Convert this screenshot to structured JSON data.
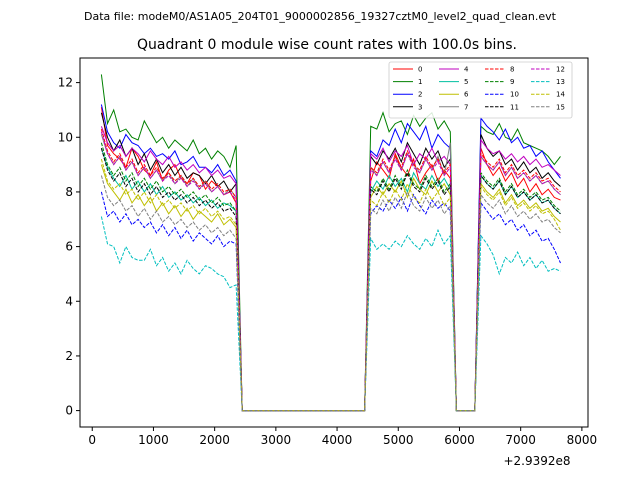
{
  "chart_data": {
    "type": "line",
    "supertitle": "Data file: modeM0/AS1A05_204T01_9000002856_19327cztM0_level2_quad_clean.evt",
    "title": "Quadrant 0 module wise count rates with 100.0s bins.",
    "xlabel": "",
    "ylabel": "",
    "x_offset_label": "+2.9392e8",
    "xlim": [
      -200,
      8100
    ],
    "ylim": [
      -0.6,
      12.9
    ],
    "xticks": [
      0,
      1000,
      2000,
      3000,
      4000,
      5000,
      6000,
      7000,
      8000
    ],
    "xtick_labels": [
      "0",
      "1000",
      "2000",
      "3000",
      "4000",
      "5000",
      "6000",
      "7000",
      "8000"
    ],
    "yticks": [
      0,
      2,
      4,
      6,
      8,
      10,
      12
    ],
    "ytick_labels": [
      "0",
      "2",
      "4",
      "6",
      "8",
      "10",
      "12"
    ],
    "grid": false,
    "legend_position": "upper-right",
    "x_segments": [
      {
        "start": 150,
        "end": 2350
      },
      {
        "start": 4550,
        "end": 5850
      },
      {
        "start": 6350,
        "end": 7650
      }
    ],
    "series": [
      {
        "name": "0",
        "color": "#ff0000",
        "dash": "solid",
        "segments": [
          [
            11.1,
            9.7,
            9.4,
            9.2,
            8.9,
            9.6,
            9.3,
            8.8,
            8.6,
            9.1,
            8.4,
            8.8,
            9.0,
            8.5,
            8.3,
            8.7,
            8.6,
            8.1,
            8.4,
            8.2,
            7.9,
            8.0,
            7.6
          ],
          [
            8.4,
            9.1,
            8.8,
            8.5,
            9.4,
            8.9,
            8.6,
            9.2,
            8.3,
            8.7,
            9.0,
            8.4,
            8.8,
            8.5
          ],
          [
            9.6,
            9.0,
            8.6,
            8.9,
            8.4,
            8.7,
            8.2,
            8.5,
            8.0,
            8.3,
            7.9,
            8.1,
            7.8,
            7.7
          ]
        ]
      },
      {
        "name": "1",
        "color": "#008000",
        "dash": "solid",
        "segments": [
          [
            12.3,
            10.5,
            11.0,
            10.2,
            10.3,
            10.0,
            9.9,
            10.6,
            10.2,
            9.8,
            10.0,
            9.6,
            9.9,
            9.7,
            9.5,
            9.9,
            9.4,
            9.6,
            9.2,
            9.5,
            9.3,
            8.9,
            9.7
          ],
          [
            10.4,
            10.3,
            10.9,
            10.2,
            10.5,
            10.6,
            10.1,
            10.8,
            10.4,
            10.7,
            10.9,
            10.3,
            10.6,
            10.2
          ],
          [
            10.4,
            10.2,
            10.1,
            10.5,
            10.0,
            9.9,
            10.3,
            9.8,
            9.7,
            9.6,
            9.5,
            9.3,
            9.0,
            9.3
          ]
        ]
      },
      {
        "name": "2",
        "color": "#0000ff",
        "dash": "solid",
        "segments": [
          [
            11.2,
            10.2,
            9.8,
            9.6,
            10.1,
            9.8,
            9.7,
            9.4,
            9.6,
            9.3,
            9.4,
            9.2,
            9.5,
            9.0,
            9.1,
            9.3,
            8.9,
            8.9,
            8.7,
            9.0,
            8.6,
            8.8,
            8.4
          ],
          [
            9.5,
            9.3,
            9.9,
            9.7,
            10.3,
            9.8,
            10.5,
            10.2,
            9.9,
            10.4,
            9.6,
            10.1,
            9.8,
            9.6
          ],
          [
            10.7,
            10.4,
            10.2,
            9.9,
            10.3,
            9.8,
            10.0,
            9.6,
            9.7,
            9.3,
            9.5,
            9.1,
            8.8,
            8.5
          ]
        ]
      },
      {
        "name": "3",
        "color": "#000000",
        "dash": "solid",
        "segments": [
          [
            10.9,
            10.0,
            9.5,
            9.9,
            9.3,
            9.6,
            9.0,
            9.4,
            8.8,
            9.2,
            8.7,
            9.0,
            8.6,
            8.9,
            8.5,
            8.7,
            8.6,
            8.3,
            8.6,
            8.2,
            8.4,
            8.0,
            8.3
          ],
          [
            9.3,
            9.0,
            9.5,
            9.2,
            9.6,
            9.1,
            9.8,
            9.4,
            9.0,
            9.6,
            9.2,
            9.5,
            8.9,
            9.2
          ],
          [
            10.1,
            9.6,
            9.3,
            9.5,
            9.0,
            9.2,
            8.8,
            9.1,
            8.7,
            8.9,
            8.5,
            8.7,
            8.4,
            8.2
          ]
        ]
      },
      {
        "name": "4",
        "color": "#bf00bf",
        "dash": "solid",
        "segments": [
          [
            10.4,
            9.8,
            9.5,
            9.7,
            9.3,
            9.6,
            9.4,
            9.1,
            9.5,
            9.2,
            9.0,
            9.3,
            8.9,
            9.1,
            8.8,
            9.0,
            8.7,
            8.9,
            8.6,
            8.8,
            8.5,
            8.6,
            8.3
          ],
          [
            9.4,
            9.2,
            9.6,
            9.1,
            9.5,
            9.3,
            9.7,
            9.0,
            9.4,
            9.2,
            9.6,
            9.1,
            9.3,
            9.0
          ],
          [
            9.9,
            9.6,
            9.4,
            9.5,
            9.2,
            9.4,
            9.1,
            9.3,
            9.0,
            9.2,
            8.9,
            9.0,
            8.8,
            8.6
          ]
        ]
      },
      {
        "name": "5",
        "color": "#00bfa0",
        "dash": "solid",
        "segments": [
          [
            9.6,
            8.9,
            8.5,
            8.2,
            8.6,
            8.1,
            8.4,
            8.0,
            8.3,
            7.9,
            8.2,
            7.8,
            8.0,
            7.7,
            7.9,
            7.6,
            7.8,
            7.5,
            7.7,
            7.4,
            7.6,
            7.5,
            7.3
          ],
          [
            8.0,
            8.4,
            8.1,
            8.6,
            8.2,
            8.5,
            8.0,
            8.7,
            8.3,
            8.1,
            8.6,
            8.2,
            8.5,
            8.1
          ],
          [
            8.6,
            8.3,
            8.1,
            8.4,
            7.9,
            8.2,
            7.8,
            8.0,
            7.7,
            7.9,
            7.6,
            7.7,
            7.4,
            7.2
          ]
        ]
      },
      {
        "name": "6",
        "color": "#bfbf00",
        "dash": "solid",
        "segments": [
          [
            9.0,
            8.3,
            8.0,
            7.7,
            8.1,
            7.6,
            7.9,
            7.5,
            7.8,
            7.3,
            7.6,
            7.2,
            7.5,
            7.1,
            7.4,
            7.0,
            7.3,
            7.1,
            6.9,
            7.2,
            6.8,
            7.0,
            6.7
          ],
          [
            7.8,
            8.2,
            7.9,
            8.3,
            8.0,
            8.4,
            7.8,
            8.5,
            8.1,
            7.9,
            8.4,
            8.0,
            8.3,
            7.9
          ],
          [
            8.3,
            8.0,
            7.8,
            8.1,
            7.6,
            7.9,
            7.5,
            7.7,
            7.4,
            7.6,
            7.3,
            7.4,
            7.1,
            6.9
          ]
        ]
      },
      {
        "name": "7",
        "color": "#808080",
        "dash": "solid",
        "segments": [
          [
            10.1,
            9.4,
            9.0,
            9.3,
            8.8,
            9.1,
            8.6,
            8.9,
            8.5,
            8.8,
            8.4,
            8.7,
            8.3,
            8.6,
            8.2,
            8.5,
            8.1,
            8.4,
            8.0,
            8.2,
            7.9,
            8.1,
            7.8
          ],
          [
            8.9,
            8.6,
            9.1,
            8.7,
            9.3,
            8.8,
            9.4,
            9.0,
            8.7,
            9.2,
            8.8,
            9.3,
            8.6,
            9.8
          ],
          [
            9.3,
            9.0,
            8.8,
            9.1,
            8.6,
            8.9,
            8.5,
            8.7,
            8.4,
            8.6,
            8.3,
            8.4,
            8.1,
            7.9
          ]
        ]
      },
      {
        "name": "8",
        "color": "#ff0000",
        "dash": "dashed",
        "segments": [
          [
            10.3,
            9.5,
            9.1,
            9.4,
            8.9,
            9.2,
            8.7,
            9.0,
            8.6,
            8.9,
            8.5,
            8.7,
            8.4,
            8.6,
            8.3,
            8.5,
            8.2,
            8.4,
            8.1,
            8.3,
            8.0,
            8.1,
            7.8
          ],
          [
            8.9,
            8.7,
            9.2,
            8.8,
            9.3,
            8.9,
            9.5,
            9.0,
            8.8,
            9.3,
            8.9,
            9.2,
            8.7,
            9.0
          ],
          [
            9.4,
            9.1,
            8.9,
            9.2,
            8.7,
            9.0,
            8.6,
            8.8,
            8.5,
            8.7,
            8.4,
            8.5,
            8.2,
            8.0
          ]
        ]
      },
      {
        "name": "9",
        "color": "#008000",
        "dash": "dashed",
        "segments": [
          [
            9.8,
            9.0,
            8.6,
            8.9,
            8.4,
            8.7,
            8.2,
            8.5,
            8.1,
            8.4,
            8.0,
            8.2,
            7.9,
            8.1,
            7.8,
            8.0,
            7.7,
            7.9,
            7.6,
            7.8,
            7.5,
            7.6,
            7.3
          ],
          [
            8.2,
            8.0,
            8.5,
            8.1,
            8.6,
            8.2,
            8.8,
            8.3,
            8.1,
            8.6,
            8.2,
            8.5,
            8.0,
            8.3
          ],
          [
            8.7,
            8.4,
            8.2,
            8.5,
            8.0,
            8.3,
            7.9,
            8.1,
            7.8,
            8.0,
            7.7,
            7.8,
            7.5,
            7.3
          ]
        ]
      },
      {
        "name": "10",
        "color": "#0000ff",
        "dash": "dashed",
        "segments": [
          [
            8.0,
            7.1,
            7.3,
            6.9,
            7.2,
            6.8,
            7.0,
            6.7,
            6.9,
            6.5,
            6.8,
            6.4,
            6.7,
            6.3,
            6.6,
            6.2,
            6.5,
            6.3,
            6.1,
            6.4,
            6.0,
            6.2,
            6.1
          ],
          [
            7.2,
            7.5,
            7.3,
            7.7,
            7.4,
            7.8,
            7.3,
            7.9,
            7.5,
            7.2,
            7.7,
            7.4,
            7.6,
            7.3
          ],
          [
            7.6,
            7.3,
            7.0,
            7.2,
            6.8,
            7.0,
            6.6,
            6.8,
            6.4,
            6.6,
            6.2,
            6.3,
            5.9,
            5.4
          ]
        ]
      },
      {
        "name": "11",
        "color": "#000000",
        "dash": "dashed",
        "segments": [
          [
            9.6,
            8.8,
            8.4,
            8.7,
            8.2,
            8.5,
            8.0,
            8.3,
            7.9,
            8.2,
            7.8,
            8.0,
            7.7,
            7.9,
            7.6,
            7.8,
            7.5,
            7.7,
            7.4,
            7.6,
            7.3,
            7.4,
            7.1
          ],
          [
            8.1,
            7.9,
            8.4,
            8.0,
            8.5,
            8.1,
            8.7,
            8.2,
            8.0,
            8.5,
            8.1,
            8.4,
            7.9,
            8.2
          ],
          [
            8.6,
            8.3,
            8.1,
            8.4,
            7.9,
            8.2,
            7.8,
            8.0,
            7.7,
            7.9,
            7.6,
            7.7,
            7.4,
            7.2
          ]
        ]
      },
      {
        "name": "12",
        "color": "#bf00bf",
        "dash": "dashed",
        "segments": [
          [
            10.2,
            9.4,
            9.0,
            9.3,
            8.8,
            9.1,
            8.6,
            8.9,
            8.5,
            8.8,
            8.4,
            8.6,
            8.3,
            8.5,
            8.2,
            8.4,
            8.1,
            8.3,
            8.0,
            8.2,
            7.9,
            8.0,
            7.7
          ],
          [
            8.8,
            8.6,
            9.1,
            8.7,
            9.2,
            8.8,
            9.4,
            8.9,
            8.7,
            9.2,
            8.8,
            9.1,
            8.6,
            8.9
          ],
          [
            9.3,
            9.0,
            8.8,
            9.1,
            8.6,
            8.9,
            8.5,
            8.7,
            8.4,
            8.6,
            8.3,
            8.4,
            8.1,
            7.9
          ]
        ]
      },
      {
        "name": "13",
        "color": "#00bfbf",
        "dash": "dashed",
        "segments": [
          [
            7.1,
            6.1,
            6.0,
            5.4,
            6.0,
            5.6,
            5.5,
            5.5,
            5.9,
            5.3,
            5.6,
            5.1,
            5.4,
            5.0,
            5.5,
            5.2,
            5.0,
            5.3,
            5.2,
            5.0,
            4.9,
            4.5,
            4.6
          ],
          [
            6.3,
            5.9,
            6.1,
            5.9,
            6.2,
            6.0,
            6.4,
            6.1,
            5.9,
            6.3,
            6.0,
            6.6,
            6.1,
            6.4
          ],
          [
            6.4,
            6.1,
            5.7,
            5.0,
            5.6,
            5.4,
            5.8,
            5.3,
            5.6,
            5.2,
            5.5,
            5.1,
            5.2,
            5.1
          ]
        ]
      },
      {
        "name": "14",
        "color": "#bfbf00",
        "dash": "dashed",
        "segments": [
          [
            9.2,
            8.4,
            8.1,
            8.3,
            7.9,
            8.1,
            7.7,
            8.0,
            7.6,
            7.9,
            7.5,
            7.7,
            7.4,
            7.6,
            7.3,
            7.5,
            7.2,
            7.4,
            7.1,
            7.3,
            7.0,
            7.1,
            6.8
          ],
          [
            7.7,
            7.5,
            8.0,
            7.6,
            8.1,
            7.7,
            8.3,
            7.8,
            7.6,
            8.1,
            7.7,
            8.0,
            7.5,
            7.8
          ],
          [
            8.2,
            7.9,
            7.7,
            8.0,
            7.5,
            7.8,
            7.4,
            7.6,
            7.3,
            7.5,
            7.2,
            7.3,
            7.0,
            6.6
          ]
        ]
      },
      {
        "name": "15",
        "color": "#808080",
        "dash": "dashed",
        "segments": [
          [
            8.6,
            7.8,
            7.5,
            7.7,
            7.3,
            7.5,
            7.1,
            7.4,
            7.0,
            7.3,
            6.9,
            7.1,
            6.8,
            7.0,
            6.7,
            6.9,
            6.6,
            6.8,
            6.5,
            6.7,
            6.4,
            6.6,
            6.3
          ],
          [
            7.4,
            7.2,
            7.7,
            7.3,
            7.8,
            7.4,
            8.0,
            7.5,
            7.3,
            7.8,
            7.4,
            7.7,
            7.2,
            7.5
          ],
          [
            7.9,
            7.6,
            7.4,
            7.7,
            7.2,
            7.5,
            7.1,
            7.3,
            7.0,
            7.2,
            6.9,
            7.0,
            6.7,
            6.5
          ]
        ]
      }
    ]
  }
}
